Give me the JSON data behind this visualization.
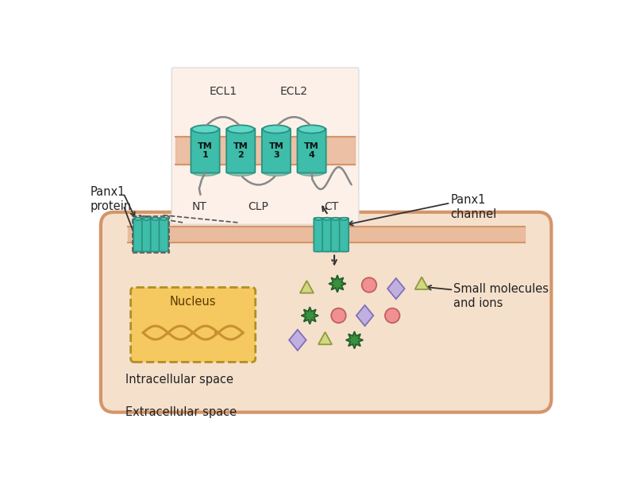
{
  "bg_color": "#ffffff",
  "cell_fill": "#f5e0cc",
  "cell_edge": "#d4956a",
  "cell_edge_lw": 3.0,
  "mem_band_fill": "#e8b898",
  "teal_fill": "#3dbdaa",
  "teal_dark": "#2a9080",
  "teal_light": "#60d8c8",
  "gray_line": "#888888",
  "nucleus_fill": "#f5c860",
  "nucleus_edge": "#b09020",
  "dna_color": "#c89030",
  "pink_fill": "#f09090",
  "pink_edge": "#c06060",
  "lavender_fill": "#c0b0e0",
  "lavender_edge": "#8070b8",
  "green_fill": "#3a9040",
  "green_edge": "#226028",
  "tri_fill": "#d0d880",
  "tri_edge": "#909840",
  "inset_fill": "#fdf0e8",
  "inset_edge": "#dddddd",
  "label_color": "#222222",
  "ecl_labels": [
    "ECL1",
    "ECL2"
  ],
  "tm_labels": [
    "TM\n1",
    "TM\n2",
    "TM\n3",
    "TM\n4"
  ],
  "bottom_labels": [
    "NT",
    "CLP",
    "CT"
  ],
  "panx1_protein_label": "Panx1\nprotein",
  "panx1_channel_label": "Panx1\nchannel",
  "small_molecules_label": "Small molecules\nand ions",
  "intracellular_label": "Intracellular space",
  "extracellular_label": "Extracellular space"
}
